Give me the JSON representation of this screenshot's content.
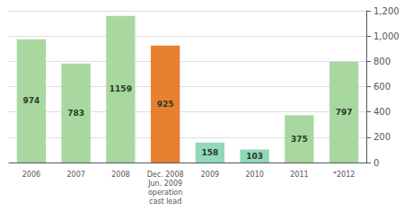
{
  "chart_data": {
    "type": "bar",
    "categories": [
      "2006",
      "2007",
      "2008",
      "Dec. 2008\nJun. 2009\noperation\ncast lead",
      "2009",
      "2010",
      "2011",
      "*2012"
    ],
    "values": [
      974,
      783,
      1159,
      925,
      158,
      103,
      375,
      797
    ],
    "colors": [
      "#a8d8a0",
      "#a8d8a0",
      "#a8d8a0",
      "#e88030",
      "#90d8b8",
      "#90d8b8",
      "#a8d8a0",
      "#a8d8a0"
    ],
    "ylim": [
      0,
      1200
    ],
    "yticks": [
      0,
      200,
      400,
      600,
      800,
      1000,
      1200
    ],
    "grid": true,
    "data_labels": true
  }
}
